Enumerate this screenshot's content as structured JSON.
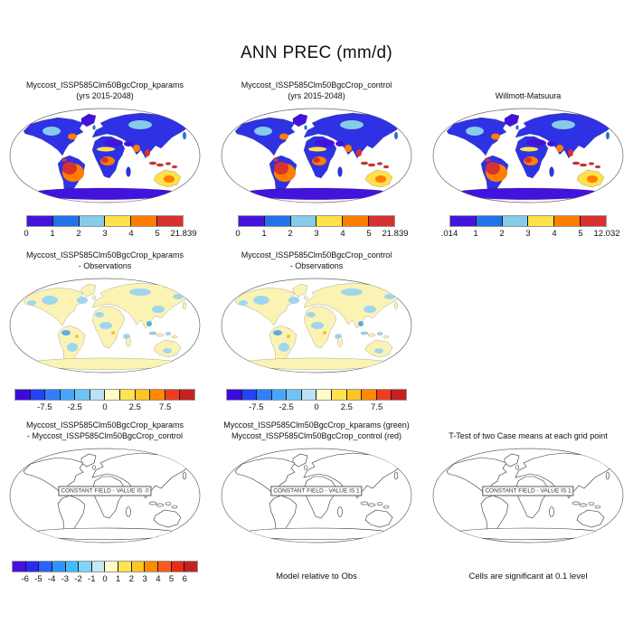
{
  "page_title": "ANN PREC (mm/d)",
  "panels": {
    "r1p1": {
      "title1": "Myccost_ISSP585Clm50BgcCrop_kparams",
      "title2": "(yrs 2015-2048)",
      "colorbar": {
        "segments": 6,
        "colors": [
          "#4313dd",
          "#2272e8",
          "#85cbea",
          "#ffe14a",
          "#ff7d00",
          "#d93030"
        ],
        "tick_positions": [
          0,
          1,
          2,
          3,
          4,
          5,
          6
        ],
        "tick_labels": [
          "0",
          "1",
          "2",
          "3",
          "4",
          "5",
          "21.839"
        ]
      }
    },
    "r1p2": {
      "title1": "Myccost_ISSP585Clm50BgcCrop_control",
      "title2": "(yrs 2015-2048)",
      "colorbar": {
        "segments": 6,
        "colors": [
          "#4313dd",
          "#2272e8",
          "#85cbea",
          "#ffe14a",
          "#ff7d00",
          "#d93030"
        ],
        "tick_positions": [
          0,
          1,
          2,
          3,
          4,
          5,
          6
        ],
        "tick_labels": [
          "0",
          "1",
          "2",
          "3",
          "4",
          "5",
          "21.839"
        ]
      }
    },
    "r1p3": {
      "title1": "Willmott-Matsuura",
      "colorbar": {
        "segments": 6,
        "colors": [
          "#4313dd",
          "#2272e8",
          "#85cbea",
          "#ffe14a",
          "#ff7d00",
          "#d93030"
        ],
        "tick_positions": [
          0,
          1,
          2,
          3,
          4,
          5,
          6
        ],
        "tick_labels": [
          ".014",
          "1",
          "2",
          "3",
          "4",
          "5",
          "12.032"
        ]
      }
    },
    "r2p1": {
      "title1": "Myccost_ISSP585Clm50BgcCrop_kparams",
      "title2": "- Observations",
      "colorbar": {
        "segments": 12,
        "colors": [
          "#3a0bd8",
          "#2144f5",
          "#2f7fff",
          "#46a5ff",
          "#6ec3f5",
          "#b9e2f5",
          "#fffbc8",
          "#ffe44d",
          "#ffc524",
          "#ff8a00",
          "#f23c21",
          "#c62121"
        ],
        "tick_positions": [
          2,
          4,
          6,
          8,
          10
        ],
        "tick_labels": [
          "-7.5",
          "-2.5",
          "0",
          "2.5",
          "7.5"
        ]
      }
    },
    "r2p2": {
      "title1": "Myccost_ISSP585Clm50BgcCrop_control",
      "title2": "- Observations",
      "colorbar": {
        "segments": 12,
        "colors": [
          "#3a0bd8",
          "#2144f5",
          "#2f7fff",
          "#46a5ff",
          "#6ec3f5",
          "#b9e2f5",
          "#fffbc8",
          "#ffe44d",
          "#ffc524",
          "#ff8a00",
          "#f23c21",
          "#c62121"
        ],
        "tick_positions": [
          2,
          4,
          6,
          8,
          10
        ],
        "tick_labels": [
          "-7.5",
          "-2.5",
          "0",
          "2.5",
          "7.5"
        ]
      }
    },
    "r3p1": {
      "title1": "Myccost_ISSP585Clm50BgcCrop_kparams",
      "title2": "- Myccost_ISSP585Clm50BgcCrop_control",
      "map_label": "CONSTANT FIELD - VALUE IS .0",
      "colorbar": {
        "segments": 14,
        "colors": [
          "#4a0fe0",
          "#2b2bf0",
          "#2a60ff",
          "#2e93ff",
          "#3ebcff",
          "#7fd4f7",
          "#c6e9f7",
          "#fffbc8",
          "#ffe44d",
          "#ffc524",
          "#ff8a00",
          "#ff5a1e",
          "#e82c1a",
          "#c62121"
        ],
        "tick_positions": [
          1,
          2,
          3,
          4,
          5,
          6,
          7,
          8,
          9,
          10,
          11,
          12,
          13
        ],
        "tick_labels": [
          "-6",
          "-5",
          "-4",
          "-3",
          "-2",
          "-1",
          "0",
          "1",
          "2",
          "3",
          "4",
          "5",
          "6"
        ]
      }
    },
    "r3p2": {
      "title1": "Myccost_ISSP585Clm50BgcCrop_kparams (green)",
      "title2": "Myccost_ISSP585Clm50BgcCrop_control (red)",
      "map_label": "CONSTANT FIELD - VALUE IS 1",
      "footnote": "Model relative to Obs"
    },
    "r3p3": {
      "title1": "T-Test of two Case means at each grid point",
      "map_label": "CONSTANT FIELD - VALUE IS 1",
      "footnote": "Cells are significant at 0.1 level"
    }
  },
  "map_colors": {
    "ocean": "#ffffff",
    "outline": "#666666",
    "coast": "#222222",
    "prec_base": "#2e32e4",
    "prec_violet": "#4313dd",
    "prec_blue": "#2272e8",
    "prec_lblue": "#85cbea",
    "prec_yellow": "#ffe14a",
    "prec_orange": "#ff7d00",
    "prec_red": "#d93030",
    "diff_base": "#fbf3b4",
    "diff_blue": "#9fd6ef",
    "diff_blue2": "#57aee8",
    "diff_orange": "#ffbb33"
  },
  "chart_data": [
    {
      "type": "map",
      "panel": "top-left",
      "title": "Myccost_ISSP585Clm50BgcCrop_kparams (yrs 2015-2048)",
      "variable": "ANN PREC",
      "units": "mm/d",
      "colorbar_levels": [
        0,
        1,
        2,
        3,
        4,
        5
      ],
      "max_value": 21.839
    },
    {
      "type": "map",
      "panel": "top-center",
      "title": "Myccost_ISSP585Clm50BgcCrop_control (yrs 2015-2048)",
      "variable": "ANN PREC",
      "units": "mm/d",
      "colorbar_levels": [
        0,
        1,
        2,
        3,
        4,
        5
      ],
      "max_value": 21.839
    },
    {
      "type": "map",
      "panel": "top-right",
      "title": "Willmott-Matsuura",
      "variable": "ANN PREC",
      "units": "mm/d",
      "min_value": 0.014,
      "colorbar_levels": [
        1,
        2,
        3,
        4,
        5
      ],
      "max_value": 12.032
    },
    {
      "type": "map",
      "panel": "middle-left",
      "title": "Myccost_ISSP585Clm50BgcCrop_kparams - Observations",
      "units": "mm/d",
      "colorbar_tick_labels": [
        -7.5,
        -2.5,
        0,
        2.5,
        7.5
      ],
      "colorbar_segments": 12
    },
    {
      "type": "map",
      "panel": "middle-center",
      "title": "Myccost_ISSP585Clm50BgcCrop_control - Observations",
      "units": "mm/d",
      "colorbar_tick_labels": [
        -7.5,
        -2.5,
        0,
        2.5,
        7.5
      ],
      "colorbar_segments": 12
    },
    {
      "type": "map",
      "panel": "bottom-left",
      "title": "Myccost_ISSP585Clm50BgcCrop_kparams - Myccost_ISSP585Clm50BgcCrop_control",
      "units": "mm/d",
      "annotation": "CONSTANT FIELD - VALUE IS .0",
      "colorbar_levels": [
        -6,
        -5,
        -4,
        -3,
        -2,
        -1,
        0,
        1,
        2,
        3,
        4,
        5,
        6
      ]
    },
    {
      "type": "map",
      "panel": "bottom-center",
      "title": "Myccost_ISSP585Clm50BgcCrop_kparams (green) / Myccost_ISSP585Clm50BgcCrop_control (red)",
      "annotation": "CONSTANT FIELD - VALUE IS 1",
      "caption": "Model relative to Obs"
    },
    {
      "type": "map",
      "panel": "bottom-right",
      "title": "T-Test of two Case means at each grid point",
      "annotation": "CONSTANT FIELD - VALUE IS 1",
      "caption": "Cells are significant at 0.1 level"
    }
  ]
}
